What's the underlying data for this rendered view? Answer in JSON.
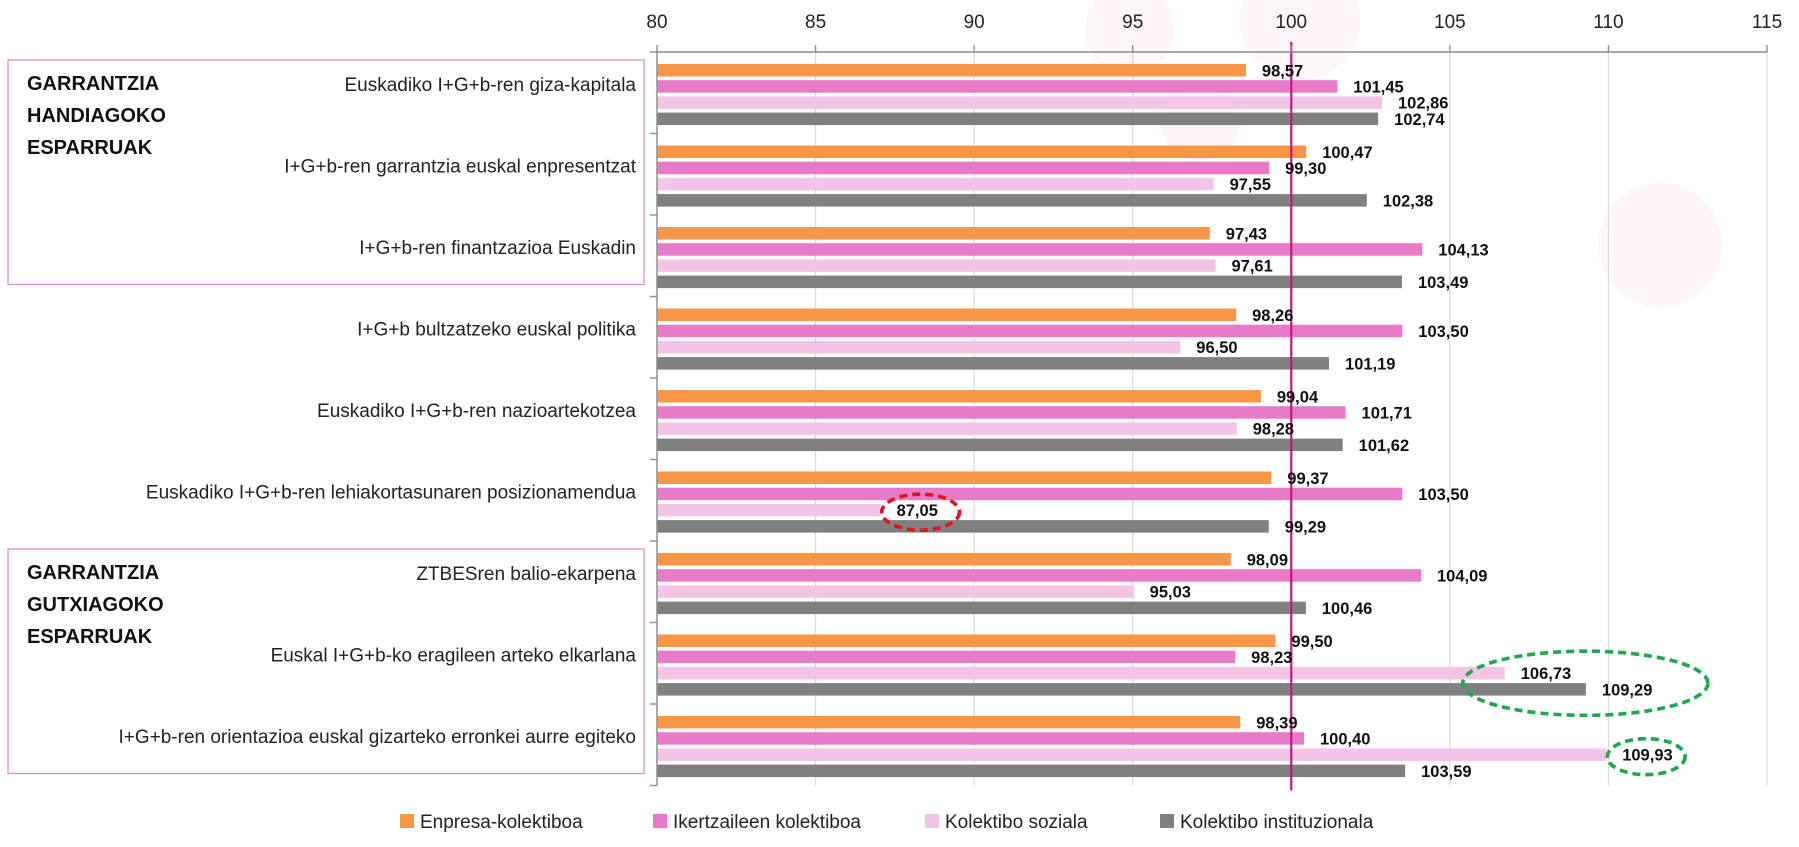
{
  "chart_data": {
    "type": "bar",
    "orientation": "horizontal",
    "xlim": [
      80,
      115
    ],
    "ticks": [
      80,
      85,
      90,
      95,
      100,
      105,
      110,
      115
    ],
    "reference_line": 100,
    "grid": true,
    "legend_position": "bottom",
    "categories": [
      "Euskadiko I+G+b-ren giza-kapitala",
      "I+G+b-ren garrantzia euskal enpresentzat",
      "I+G+b-ren finantzazioa Euskadin",
      "I+G+b bultzatzeko euskal politika",
      "Euskadiko I+G+b-ren nazioartekotzea",
      "Euskadiko I+G+b-ren lehiakortasunaren posizionamendua",
      "ZTBESren balio-ekarpena",
      "Euskal I+G+b-ko eragileen arteko elkarlana",
      "I+G+b-ren orientazioa euskal gizarteko erronkei aurre egiteko"
    ],
    "series": [
      {
        "name": "Enpresa-kolektiboa",
        "color": "#f79646",
        "values": [
          98.57,
          100.47,
          97.43,
          98.26,
          99.04,
          99.37,
          98.09,
          99.5,
          98.39
        ],
        "labels": [
          "98,57",
          "100,47",
          "97,43",
          "98,26",
          "99,04",
          "99,37",
          "98,09",
          "99,50",
          "98,39"
        ]
      },
      {
        "name": "Ikertzaileen kolektiboa",
        "color": "#e87bc8",
        "values": [
          101.45,
          99.3,
          104.13,
          103.5,
          101.71,
          103.5,
          104.09,
          98.23,
          100.4
        ],
        "labels": [
          "101,45",
          "99,30",
          "104,13",
          "103,50",
          "101,71",
          "103,50",
          "104,09",
          "98,23",
          "100,40"
        ]
      },
      {
        "name": "Kolektibo soziala",
        "color": "#f3c4e6",
        "values": [
          102.86,
          97.55,
          97.61,
          96.5,
          98.28,
          87.05,
          95.03,
          106.73,
          109.93
        ],
        "labels": [
          "102,86",
          "97,55",
          "97,61",
          "96,50",
          "98,28",
          "87,05",
          "95,03",
          "106,73",
          "109,93"
        ]
      },
      {
        "name": "Kolektibo instituzionala",
        "color": "#808080",
        "values": [
          102.74,
          102.38,
          103.49,
          101.19,
          101.62,
          99.29,
          100.46,
          109.29,
          103.59
        ],
        "labels": [
          "102,74",
          "102,38",
          "103,49",
          "101,19",
          "101,62",
          "99,29",
          "100,46",
          "109,29",
          "103,59"
        ]
      }
    ],
    "groups": [
      {
        "lines": [
          "GARRANTZIA",
          "HANDIAGOKO",
          "ESPARRUAK"
        ],
        "border_color": "#e38ac7",
        "first": 0,
        "last": 2
      },
      {
        "lines": [
          "GARRANTZIA",
          "GUTXIAGOKO",
          "ESPARRUAK"
        ],
        "border_color": "#e38ac7",
        "first": 6,
        "last": 8
      }
    ],
    "highlights": [
      {
        "kind": "low",
        "color": "#e0141e",
        "category": 5,
        "series": [
          2
        ]
      },
      {
        "kind": "high",
        "color": "#1ea84a",
        "category": 7,
        "series": [
          2,
          3
        ]
      },
      {
        "kind": "high",
        "color": "#1ea84a",
        "category": 8,
        "series": [
          2
        ]
      }
    ]
  }
}
